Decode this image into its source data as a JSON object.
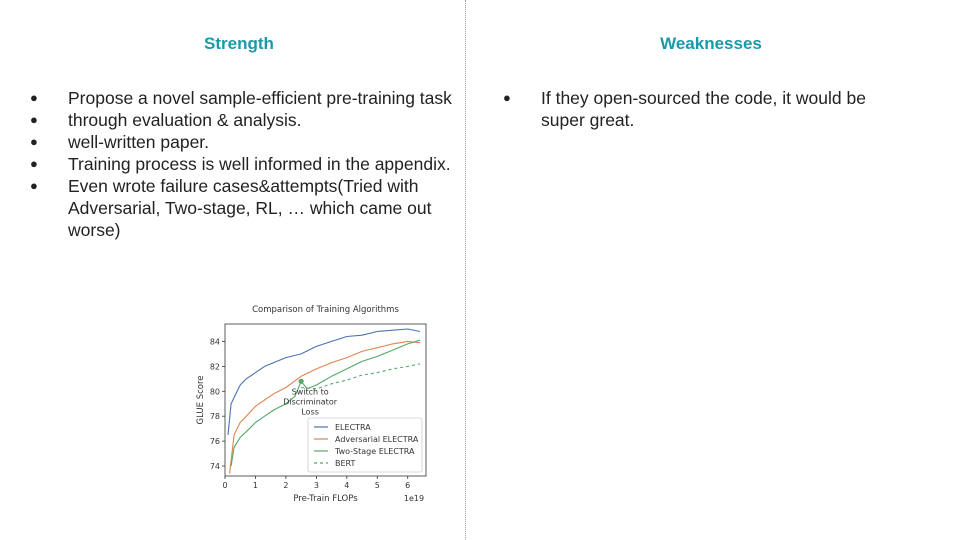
{
  "left": {
    "title": "Strength",
    "items": [
      {
        "text": "Propose a novel sample-efficient pre-training task"
      },
      {
        "text": "through evaluation & analysis."
      },
      {
        "text": "well-written paper."
      },
      {
        "text": "Training process is well informed in the appendix."
      },
      {
        "text": "Even wrote failure cases&attempts(Tried with Adversarial, Two-stage, RL, … which came out worse)"
      }
    ]
  },
  "right": {
    "title": "Weaknesses",
    "items": [
      {
        "text": "If they open-sourced the code, it would be super great."
      }
    ]
  },
  "bullet_glyph": "●",
  "colors": {
    "title_accent": "#1a9aa8",
    "electra": "#4c72b0",
    "adversarial": "#dd8452",
    "two_stage": "#55a868",
    "bert": "#55a868"
  },
  "chart_data": {
    "type": "line",
    "title": "Comparison of Training Algorithms",
    "xlabel": "Pre-Train FLOPs",
    "ylabel": "GLUE Score",
    "x_offset_label": "1e19",
    "xlim": [
      0,
      6.6
    ],
    "ylim": [
      73.2,
      85.4
    ],
    "xticks": [
      "0",
      "1",
      "2",
      "3",
      "4",
      "5",
      "6"
    ],
    "yticks": [
      "74",
      "76",
      "78",
      "80",
      "82",
      "84"
    ],
    "annotation": {
      "lines": [
        "Switch to",
        "Discriminator",
        "Loss"
      ],
      "x": 2.5,
      "y": 80.8
    },
    "legend_position": "lower-right",
    "series": [
      {
        "name": "ELECTRA",
        "style": "solid",
        "color": "#4c72b0",
        "x": [
          0.1,
          0.2,
          0.3,
          0.5,
          0.7,
          1.0,
          1.3,
          1.6,
          2.0,
          2.5,
          3.0,
          3.5,
          4.0,
          4.5,
          5.0,
          5.5,
          6.0,
          6.4
        ],
        "y": [
          76.5,
          79.0,
          79.5,
          80.5,
          81.0,
          81.5,
          82.0,
          82.3,
          82.7,
          83.0,
          83.6,
          84.0,
          84.4,
          84.5,
          84.8,
          84.9,
          85.0,
          84.8
        ]
      },
      {
        "name": "Adversarial ELECTRA",
        "style": "solid",
        "color": "#dd8452",
        "x": [
          0.15,
          0.3,
          0.5,
          0.7,
          1.0,
          1.3,
          1.6,
          2.0,
          2.5,
          3.0,
          3.5,
          4.0,
          4.5,
          5.0,
          5.5,
          6.0,
          6.4
        ],
        "y": [
          73.4,
          76.5,
          77.5,
          78.0,
          78.8,
          79.3,
          79.8,
          80.3,
          81.2,
          81.8,
          82.3,
          82.7,
          83.2,
          83.5,
          83.8,
          84.0,
          83.9
        ]
      },
      {
        "name": "Two-Stage ELECTRA",
        "style": "solid",
        "color": "#55a868",
        "x": [
          0.2,
          0.3,
          0.5,
          0.8,
          1.0,
          1.3,
          1.6,
          2.0,
          2.3,
          2.5,
          2.7,
          3.0,
          3.5,
          4.0,
          4.5,
          5.0,
          5.5,
          6.0,
          6.4
        ],
        "y": [
          74.0,
          75.5,
          76.3,
          77.0,
          77.5,
          78.0,
          78.5,
          79.0,
          79.6,
          80.8,
          80.2,
          80.5,
          81.2,
          81.8,
          82.4,
          82.8,
          83.3,
          83.8,
          84.1
        ]
      },
      {
        "name": "BERT",
        "style": "dashed",
        "color": "#55a868",
        "x": [
          2.5,
          3.0,
          3.5,
          4.0,
          4.5,
          5.0,
          5.5,
          6.0,
          6.4
        ],
        "y": [
          80.3,
          80.2,
          80.6,
          80.9,
          81.3,
          81.5,
          81.8,
          82.0,
          82.2
        ]
      }
    ]
  }
}
